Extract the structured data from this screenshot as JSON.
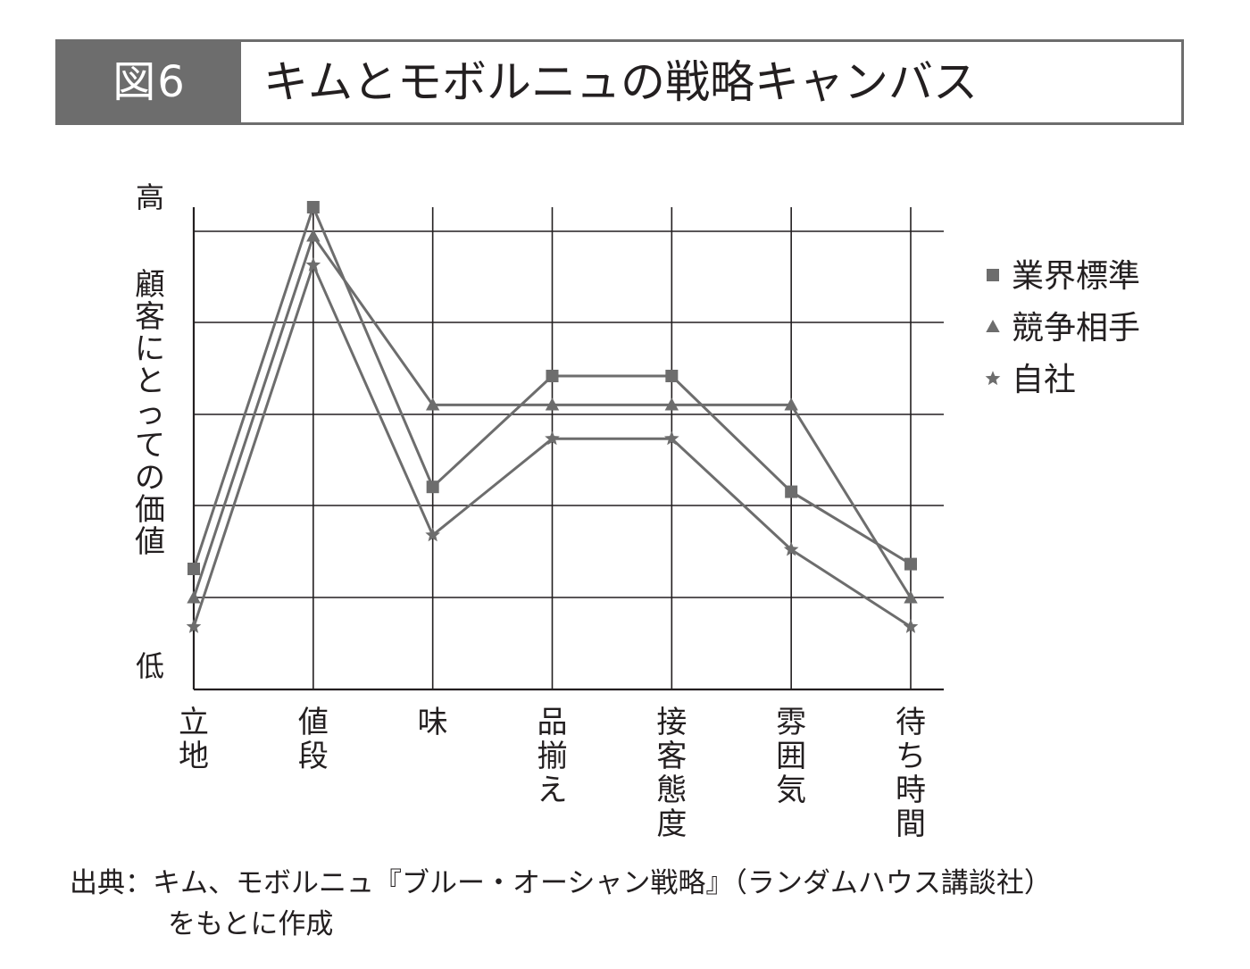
{
  "header": {
    "badge": "図6",
    "title": "キムとモボルニュの戦略キャンバス"
  },
  "chart_data": {
    "type": "line",
    "title": "キムとモボルニュの戦略キャンバス",
    "ylabel": "顧客にとっての価値",
    "y_high_label": "高",
    "y_low_label": "低",
    "categories": [
      "立地",
      "値段",
      "味",
      "品揃え",
      "接客態度",
      "雰囲気",
      "待ち時間"
    ],
    "ylim": [
      0,
      100
    ],
    "grid": true,
    "legend_position": "right",
    "series": [
      {
        "name": "業界標準",
        "marker": "square",
        "values": [
          25,
          100,
          42,
          65,
          65,
          41,
          26
        ]
      },
      {
        "name": "競争相手",
        "marker": "triangle",
        "values": [
          19,
          94,
          59,
          59,
          59,
          59,
          19
        ]
      },
      {
        "name": "自社",
        "marker": "star",
        "values": [
          13,
          88,
          32,
          52,
          52,
          29,
          13
        ]
      }
    ],
    "colors": {
      "line": "#6d6d6d",
      "grid": "#231f20",
      "text": "#231f20"
    }
  },
  "source": {
    "line1": "出典：キム、モボルニュ『ブルー・オーシャン戦略』（ランダムハウス講談社）",
    "line2": "をもとに作成"
  }
}
